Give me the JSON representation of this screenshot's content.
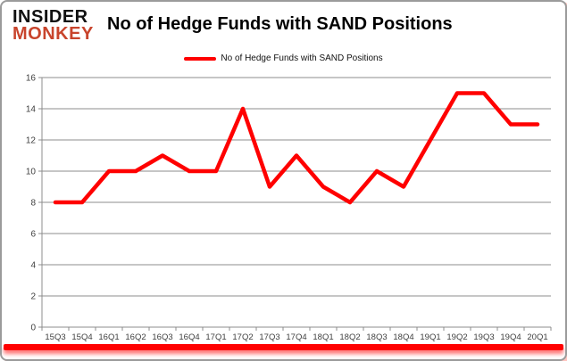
{
  "logo": {
    "line1": "INSIDER",
    "line2": "MONKEY"
  },
  "header": {
    "title": "No of Hedge Funds with SAND Positions"
  },
  "legend": {
    "label": "No of Hedge Funds with SAND Positions"
  },
  "chart_data": {
    "type": "line",
    "title": "No of Hedge Funds with SAND Positions",
    "categories": [
      "15Q3",
      "15Q4",
      "16Q1",
      "16Q2",
      "16Q3",
      "16Q4",
      "17Q1",
      "17Q2",
      "17Q3",
      "17Q4",
      "18Q1",
      "18Q2",
      "18Q3",
      "18Q4",
      "19Q1",
      "19Q2",
      "19Q3",
      "19Q4",
      "20Q1"
    ],
    "series": [
      {
        "name": "No of Hedge Funds with SAND Positions",
        "color": "#ff0000",
        "values": [
          8,
          8,
          10,
          10,
          11,
          10,
          10,
          14,
          9,
          11,
          9,
          8,
          10,
          9,
          12,
          15,
          15,
          13,
          13
        ]
      }
    ],
    "xlabel": "",
    "ylabel": "",
    "ylim": [
      0,
      16
    ],
    "yticks": [
      0,
      2,
      4,
      6,
      8,
      10,
      12,
      14,
      16
    ],
    "grid": true,
    "legend_position": "top-center"
  },
  "colors": {
    "line": "#ff0000",
    "grid": "#8c8c8c",
    "axis": "#8c8c8c",
    "tick_label": "#404040",
    "logo_black": "#111111",
    "logo_red": "#c8442c",
    "bottom_bar": "#ff0000",
    "border": "#9b9b9b"
  }
}
